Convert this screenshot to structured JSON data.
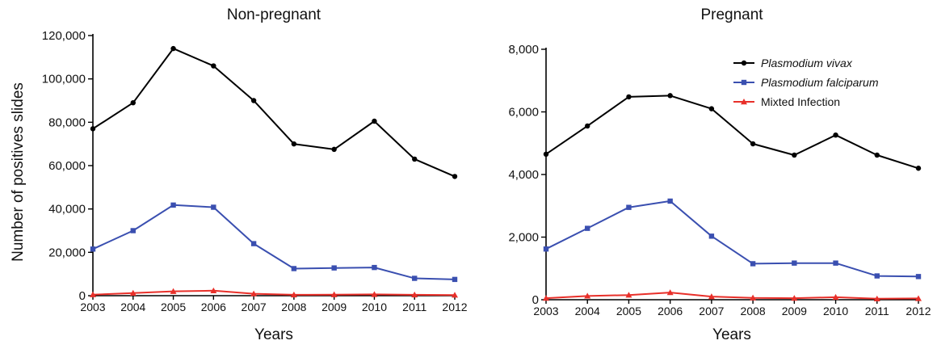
{
  "chart_data": [
    {
      "type": "line",
      "title": "Non-pregnant",
      "xlabel": "Years",
      "ylabel": "Number of positives slides",
      "ylim": [
        0,
        120000
      ],
      "yticks": [
        "0",
        "20,000",
        "40,000",
        "60,000",
        "80,000",
        "100,000",
        "120,000"
      ],
      "x": [
        "2003",
        "2004",
        "2005",
        "2006",
        "2007",
        "2008",
        "2009",
        "2010",
        "2011",
        "2012"
      ],
      "grid": false,
      "series": [
        {
          "name": "Plasmodium vivax",
          "color": "#000000",
          "marker": "circle",
          "values": [
            77000,
            89000,
            114000,
            106000,
            90000,
            70000,
            67500,
            80500,
            63000,
            55000
          ]
        },
        {
          "name": "Plasmodium falciparum",
          "color": "#3a4fb0",
          "marker": "square",
          "values": [
            21500,
            30000,
            41800,
            40800,
            24000,
            12500,
            12800,
            13000,
            8000,
            7500
          ]
        },
        {
          "name": "Mixted Infection",
          "color": "#e8302a",
          "marker": "triangle",
          "values": [
            500,
            1200,
            2000,
            2300,
            900,
            400,
            500,
            600,
            400,
            300
          ]
        }
      ]
    },
    {
      "type": "line",
      "title": "Pregnant",
      "xlabel": "Years",
      "ylabel": "",
      "ylim": [
        0,
        8000
      ],
      "yticks": [
        "0",
        "2,000",
        "4,000",
        "6,000",
        "8,000"
      ],
      "x": [
        "2003",
        "2004",
        "2005",
        "2006",
        "2007",
        "2008",
        "2009",
        "2010",
        "2011",
        "2012"
      ],
      "grid": false,
      "legend": "top-right",
      "series": [
        {
          "name": "Plasmodium vivax",
          "color": "#000000",
          "marker": "circle",
          "values": [
            4650,
            5550,
            6480,
            6520,
            6100,
            4980,
            4620,
            5260,
            4620,
            4200
          ]
        },
        {
          "name": "Plasmodium falciparum",
          "color": "#3a4fb0",
          "marker": "square",
          "values": [
            1620,
            2280,
            2950,
            3150,
            2030,
            1150,
            1170,
            1170,
            760,
            740
          ]
        },
        {
          "name": "Mixted Infection",
          "color": "#e8302a",
          "marker": "triangle",
          "values": [
            50,
            120,
            150,
            230,
            100,
            60,
            50,
            80,
            30,
            40
          ]
        }
      ]
    }
  ]
}
